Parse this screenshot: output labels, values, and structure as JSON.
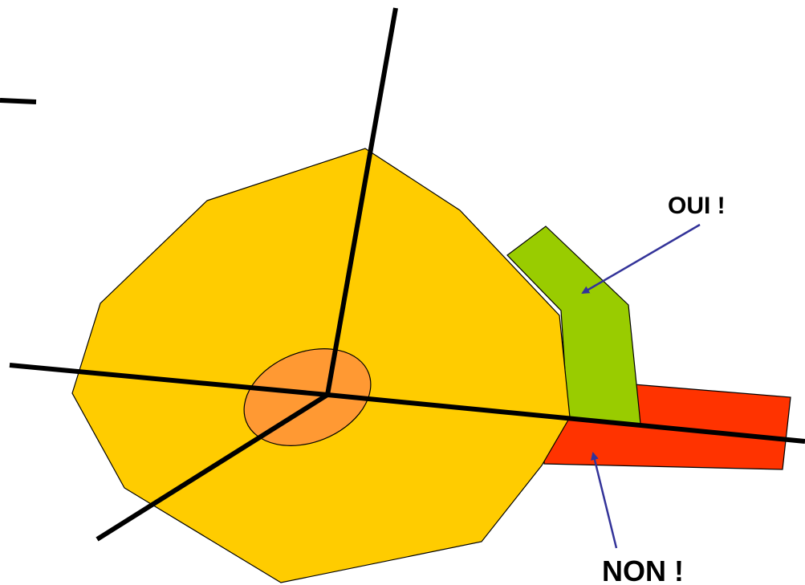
{
  "labels": {
    "yes": "OUI !",
    "no": "NON !"
  },
  "colors": {
    "main_polygon": "#FFCC00",
    "center_ellipse": "#FF9933",
    "valid_region": "#99CC00",
    "invalid_region": "#FF3300",
    "arrow": "#333399",
    "axis_lines": "#000000"
  }
}
